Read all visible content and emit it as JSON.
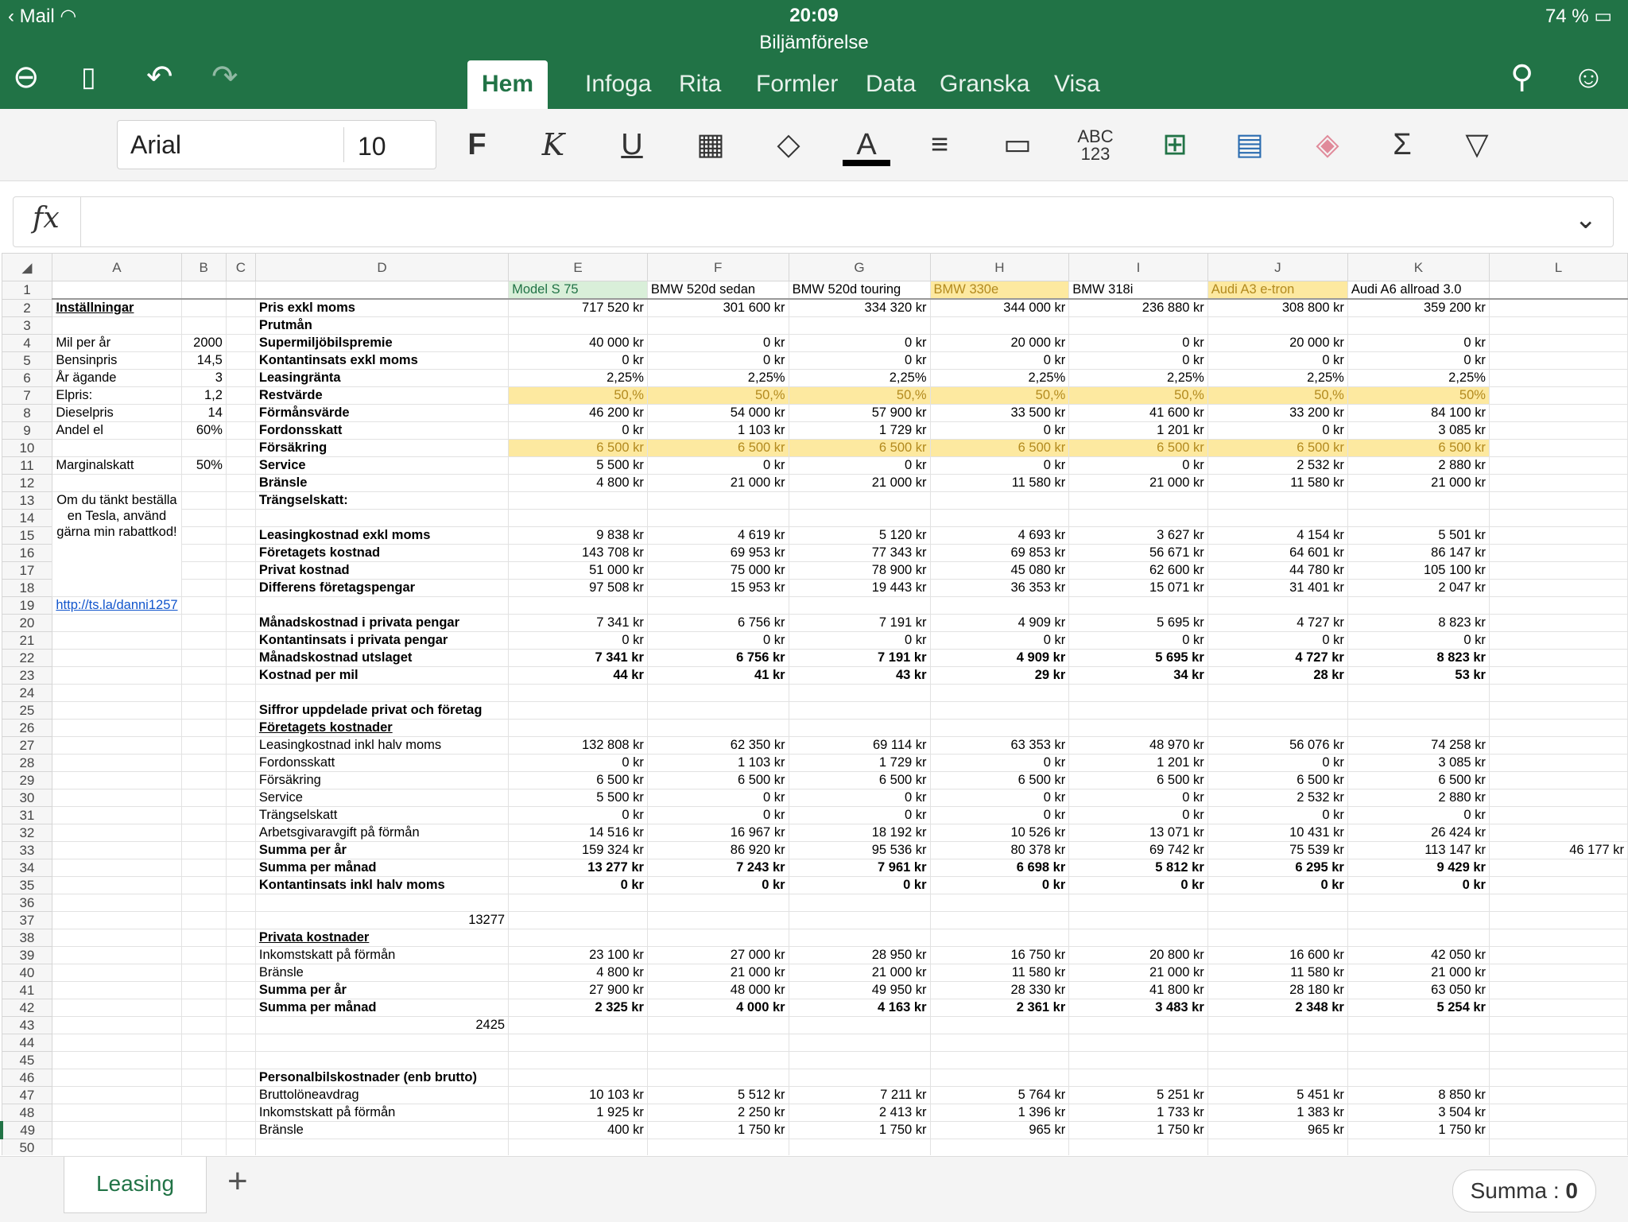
{
  "status": {
    "left": "Mail",
    "time": "20:09",
    "battery": "74 %"
  },
  "document": {
    "title": "Biljämförelse"
  },
  "tabs": [
    "Hem",
    "Infoga",
    "Rita",
    "Formler",
    "Data",
    "Granska",
    "Visa"
  ],
  "ribbon": {
    "font_name": "Arial",
    "font_size": "10",
    "bold": "F",
    "italic": "K",
    "underline": "U",
    "number_format": "ABC\n123"
  },
  "formula_bar": {
    "label": "fx",
    "value": ""
  },
  "columns": [
    "A",
    "B",
    "C",
    "D",
    "E",
    "F",
    "G",
    "H",
    "I",
    "J",
    "K",
    "L"
  ],
  "rows": [
    {
      "n": 1,
      "d": "",
      "vals": [
        "Model S 75",
        "BMW 520d sedan",
        "BMW 520d touring",
        "BMW 330e",
        "BMW 318i",
        "Audi A3 e-tron",
        "Audi A6 allroad 3.0"
      ],
      "header": true
    },
    {
      "n": 2,
      "a": "Inställningar",
      "d": "Pris exkl moms",
      "bold": true,
      "vals": [
        "717 520 kr",
        "301 600 kr",
        "334 320 kr",
        "344 000 kr",
        "236 880 kr",
        "308 800 kr",
        "359 200 kr"
      ]
    },
    {
      "n": 3,
      "d": "Prutmån",
      "bold": true,
      "vals": [
        "",
        "",
        "",
        "",
        "",
        "",
        ""
      ]
    },
    {
      "n": 4,
      "a": "Mil per år",
      "b": "2000",
      "d": "Supermiljöbilspremie",
      "bold": true,
      "vals": [
        "40 000 kr",
        "0 kr",
        "0 kr",
        "20 000 kr",
        "0 kr",
        "20 000 kr",
        "0 kr"
      ]
    },
    {
      "n": 5,
      "a": "Bensinpris",
      "b": "14,5",
      "d": "Kontantinsats exkl moms",
      "bold": true,
      "vals": [
        "0 kr",
        "0 kr",
        "0 kr",
        "0 kr",
        "0 kr",
        "0 kr",
        "0 kr"
      ]
    },
    {
      "n": 6,
      "a": "År ägande",
      "b": "3",
      "d": "Leasingränta",
      "bold": true,
      "vals": [
        "2,25%",
        "2,25%",
        "2,25%",
        "2,25%",
        "2,25%",
        "2,25%",
        "2,25%"
      ]
    },
    {
      "n": 7,
      "a": "Elpris:",
      "b": "1,2",
      "d": "Restvärde",
      "bold": true,
      "yellow": true,
      "vals": [
        "50,%",
        "50,%",
        "50,%",
        "50,%",
        "50,%",
        "50,%",
        "50%"
      ]
    },
    {
      "n": 8,
      "a": "Dieselpris",
      "b": "14",
      "d": "Förmånsvärde",
      "bold": true,
      "vals": [
        "46 200 kr",
        "54 000 kr",
        "57 900 kr",
        "33 500 kr",
        "41 600 kr",
        "33 200 kr",
        "84 100 kr"
      ]
    },
    {
      "n": 9,
      "a": "Andel el",
      "b": "60%",
      "d": "Fordonsskatt",
      "bold": true,
      "vals": [
        "0 kr",
        "1 103 kr",
        "1 729 kr",
        "0 kr",
        "1 201 kr",
        "0 kr",
        "3 085 kr"
      ]
    },
    {
      "n": 10,
      "d": "Försäkring",
      "bold": true,
      "yellow": true,
      "vals": [
        "6 500 kr",
        "6 500 kr",
        "6 500 kr",
        "6 500 kr",
        "6 500 kr",
        "6 500 kr",
        "6 500 kr"
      ]
    },
    {
      "n": 11,
      "a": "Marginalskatt",
      "b": "50%",
      "d": "Service",
      "bold": true,
      "vals": [
        "5 500 kr",
        "0 kr",
        "0 kr",
        "0 kr",
        "0 kr",
        "2 532 kr",
        "2 880 kr"
      ]
    },
    {
      "n": 12,
      "d": "Bränsle",
      "bold": true,
      "vals": [
        "4 800 kr",
        "21 000 kr",
        "21 000 kr",
        "11 580 kr",
        "21 000 kr",
        "11 580 kr",
        "21 000 kr"
      ]
    },
    {
      "n": 13,
      "d": "Trängselskatt:",
      "bold": true,
      "vals": [
        "",
        "",
        "",
        "",
        "",
        "",
        ""
      ]
    },
    {
      "n": 14,
      "d": "",
      "vals": [
        "",
        "",
        "",
        "",
        "",
        "",
        ""
      ]
    },
    {
      "n": 15,
      "d": "Leasingkostnad exkl moms",
      "bold": true,
      "vals": [
        "9 838 kr",
        "4 619 kr",
        "5 120 kr",
        "4 693 kr",
        "3 627 kr",
        "4 154 kr",
        "5 501 kr"
      ]
    },
    {
      "n": 16,
      "d": "Företagets kostnad",
      "bold": true,
      "vals": [
        "143 708 kr",
        "69 953 kr",
        "77 343 kr",
        "69 853 kr",
        "56 671 kr",
        "64 601 kr",
        "86 147 kr"
      ]
    },
    {
      "n": 17,
      "d": "Privat kostnad",
      "bold": true,
      "vals": [
        "51 000 kr",
        "75 000 kr",
        "78 900 kr",
        "45 080 kr",
        "62 600 kr",
        "44 780 kr",
        "105 100 kr"
      ]
    },
    {
      "n": 18,
      "d": "Differens företagspengar",
      "bold": true,
      "vals": [
        "97 508 kr",
        "15 953 kr",
        "19 443 kr",
        "36 353 kr",
        "15 071 kr",
        "31 401 kr",
        "2 047 kr"
      ]
    },
    {
      "n": 19,
      "a": "http://ts.la/danni1257",
      "d": "",
      "vals": [
        "",
        "",
        "",
        "",
        "",
        "",
        ""
      ]
    },
    {
      "n": 20,
      "d": "Månadskostnad i privata pengar",
      "bold": true,
      "vals": [
        "7 341 kr",
        "6 756 kr",
        "7 191 kr",
        "4 909 kr",
        "5 695 kr",
        "4 727 kr",
        "8 823 kr"
      ]
    },
    {
      "n": 21,
      "d": "Kontantinsats i privata pengar",
      "bold": true,
      "vals": [
        "0 kr",
        "0 kr",
        "0 kr",
        "0 kr",
        "0 kr",
        "0 kr",
        "0 kr"
      ]
    },
    {
      "n": 22,
      "d": "Månadskostnad utslaget",
      "bold": true,
      "boldvals": true,
      "vals": [
        "7 341 kr",
        "6 756 kr",
        "7 191 kr",
        "4 909 kr",
        "5 695 kr",
        "4 727 kr",
        "8 823 kr"
      ]
    },
    {
      "n": 23,
      "d": "Kostnad per mil",
      "bold": true,
      "boldvals": true,
      "vals": [
        "44 kr",
        "41 kr",
        "43 kr",
        "29 kr",
        "34 kr",
        "28 kr",
        "53 kr"
      ]
    },
    {
      "n": 24,
      "d": "",
      "vals": [
        "",
        "",
        "",
        "",
        "",
        "",
        ""
      ]
    },
    {
      "n": 25,
      "d": "Siffror uppdelade privat och företag",
      "bold": true,
      "vals": [
        "",
        "",
        "",
        "",
        "",
        "",
        ""
      ]
    },
    {
      "n": 26,
      "d": "Företagets kostnader",
      "bold": true,
      "underline": true,
      "vals": [
        "",
        "",
        "",
        "",
        "",
        "",
        ""
      ]
    },
    {
      "n": 27,
      "d": "Leasingkostnad inkl halv moms",
      "vals": [
        "132 808 kr",
        "62 350 kr",
        "69 114 kr",
        "63 353 kr",
        "48 970 kr",
        "56 076 kr",
        "74 258 kr"
      ]
    },
    {
      "n": 28,
      "d": "Fordonsskatt",
      "vals": [
        "0 kr",
        "1 103 kr",
        "1 729 kr",
        "0 kr",
        "1 201 kr",
        "0 kr",
        "3 085 kr"
      ]
    },
    {
      "n": 29,
      "d": "Försäkring",
      "vals": [
        "6 500 kr",
        "6 500 kr",
        "6 500 kr",
        "6 500 kr",
        "6 500 kr",
        "6 500 kr",
        "6 500 kr"
      ]
    },
    {
      "n": 30,
      "d": "Service",
      "vals": [
        "5 500 kr",
        "0 kr",
        "0 kr",
        "0 kr",
        "0 kr",
        "2 532 kr",
        "2 880 kr"
      ]
    },
    {
      "n": 31,
      "d": "Trängselskatt",
      "vals": [
        "0 kr",
        "0 kr",
        "0 kr",
        "0 kr",
        "0 kr",
        "0 kr",
        "0 kr"
      ]
    },
    {
      "n": 32,
      "d": "Arbetsgivaravgift på förmån",
      "vals": [
        "14 516 kr",
        "16 967 kr",
        "18 192 kr",
        "10 526 kr",
        "13 071 kr",
        "10 431 kr",
        "26 424 kr"
      ]
    },
    {
      "n": 33,
      "d": "Summa per år",
      "bold": true,
      "vals": [
        "159 324 kr",
        "86 920 kr",
        "95 536 kr",
        "80 378 kr",
        "69 742 kr",
        "75 539 kr",
        "113 147 kr"
      ],
      "l": "46 177 kr"
    },
    {
      "n": 34,
      "d": "Summa per månad",
      "bold": true,
      "boldvals": true,
      "vals": [
        "13 277 kr",
        "7 243 kr",
        "7 961 kr",
        "6 698 kr",
        "5 812 kr",
        "6 295 kr",
        "9 429 kr"
      ]
    },
    {
      "n": 35,
      "d": "Kontantinsats inkl halv moms",
      "bold": true,
      "boldvals": true,
      "vals": [
        "0 kr",
        "0 kr",
        "0 kr",
        "0 kr",
        "0 kr",
        "0 kr",
        "0 kr"
      ]
    },
    {
      "n": 36,
      "d": "",
      "vals": [
        "",
        "",
        "",
        "",
        "",
        "",
        ""
      ]
    },
    {
      "n": 37,
      "d": "13277",
      "dnum": true,
      "vals": [
        "",
        "",
        "",
        "",
        "",
        "",
        ""
      ]
    },
    {
      "n": 38,
      "d": "Privata kostnader",
      "bold": true,
      "underline": true,
      "vals": [
        "",
        "",
        "",
        "",
        "",
        "",
        ""
      ]
    },
    {
      "n": 39,
      "d": "Inkomstskatt på förmån",
      "vals": [
        "23 100 kr",
        "27 000 kr",
        "28 950 kr",
        "16 750 kr",
        "20 800 kr",
        "16 600 kr",
        "42 050 kr"
      ]
    },
    {
      "n": 40,
      "d": "Bränsle",
      "vals": [
        "4 800 kr",
        "21 000 kr",
        "21 000 kr",
        "11 580 kr",
        "21 000 kr",
        "11 580 kr",
        "21 000 kr"
      ]
    },
    {
      "n": 41,
      "d": "Summa per år",
      "bold": true,
      "vals": [
        "27 900 kr",
        "48 000 kr",
        "49 950 kr",
        "28 330 kr",
        "41 800 kr",
        "28 180 kr",
        "63 050 kr"
      ]
    },
    {
      "n": 42,
      "d": "Summa per månad",
      "bold": true,
      "boldvals": true,
      "vals": [
        "2 325 kr",
        "4 000 kr",
        "4 163 kr",
        "2 361 kr",
        "3 483 kr",
        "2 348 kr",
        "5 254 kr"
      ]
    },
    {
      "n": 43,
      "d": "2425",
      "dnum": true,
      "vals": [
        "",
        "",
        "",
        "",
        "",
        "",
        ""
      ]
    },
    {
      "n": 44,
      "d": "",
      "vals": [
        "",
        "",
        "",
        "",
        "",
        "",
        ""
      ]
    },
    {
      "n": 45,
      "d": "",
      "vals": [
        "",
        "",
        "",
        "",
        "",
        "",
        ""
      ]
    },
    {
      "n": 46,
      "d": "Personalbilskostnader (enb brutto)",
      "bold": true,
      "vals": [
        "",
        "",
        "",
        "",
        "",
        "",
        ""
      ]
    },
    {
      "n": 47,
      "d": "Bruttolöneavdrag",
      "vals": [
        "10 103 kr",
        "5 512 kr",
        "7 211 kr",
        "5 764 kr",
        "5 251 kr",
        "5 451 kr",
        "8 850 kr"
      ]
    },
    {
      "n": 48,
      "d": "Inkomstskatt på förmån",
      "vals": [
        "1 925 kr",
        "2 250 kr",
        "2 413 kr",
        "1 396 kr",
        "1 733 kr",
        "1 383 kr",
        "3 504 kr"
      ]
    },
    {
      "n": 49,
      "d": "Bränsle",
      "vals": [
        "400 kr",
        "1 750 kr",
        "1 750 kr",
        "965 kr",
        "1 750 kr",
        "965 kr",
        "1 750 kr"
      ]
    },
    {
      "n": 50,
      "d": "",
      "vals": [
        "",
        "",
        "",
        "",
        "",
        "",
        ""
      ]
    }
  ],
  "note": "Om du tänkt beställa en Tesla, använd gärna min rabattkod!",
  "sheet_tab": "Leasing",
  "summa": {
    "label": "Summa :",
    "value": "0"
  }
}
